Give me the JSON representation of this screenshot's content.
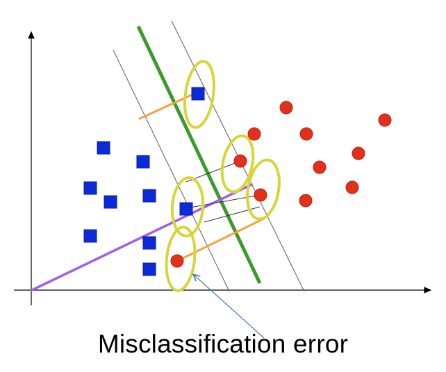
{
  "caption": "Misclassification error",
  "colors": {
    "axis": "#000000",
    "margin_line": "#666666",
    "decision_boundary": "#3a9a2a",
    "class_square_fill": "#0b2ad8",
    "class_square_stroke": "#0a1fa0",
    "class_circle_fill": "#e2301c",
    "class_circle_stroke": "#b8220f",
    "support_vector_highlight": "#d8d43a",
    "distance_line": "#f4a340",
    "misclassification_line": "#a25ee8",
    "annotation_arrow": "#4a78c8",
    "connector_line": "#333333"
  },
  "legend_items": [
    {
      "label": "",
      "shape": "square"
    },
    {
      "label": "",
      "shape": "circle"
    }
  ]
}
